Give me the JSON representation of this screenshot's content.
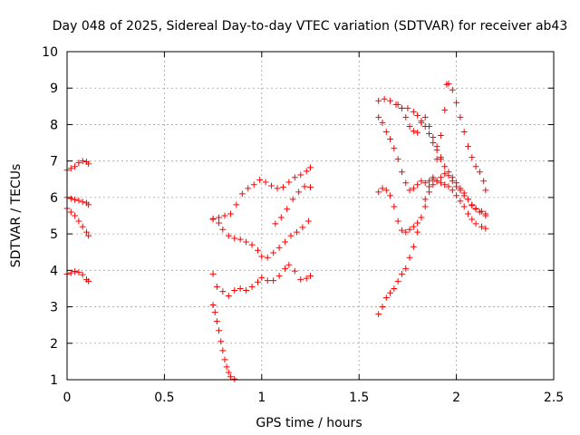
{
  "chart_data": {
    "type": "scatter",
    "title": "Day 048 of 2025, Sidereal Day-to-day VTEC variation (SDTVAR) for receiver ab43",
    "xlabel": "GPS time / hours",
    "ylabel": "SDTVAR / TECUs",
    "xlim": [
      0,
      2.5
    ],
    "ylim": [
      1,
      10
    ],
    "x_ticks": [
      "0",
      "0.5",
      "1",
      "1.5",
      "2",
      "2.5"
    ],
    "y_ticks": [
      "1",
      "2",
      "3",
      "4",
      "5",
      "6",
      "7",
      "8",
      "9",
      "10"
    ],
    "grid": true,
    "marker": "+",
    "color": "#ff0000",
    "series": [
      {
        "points": [
          [
            0.0,
            6.75
          ],
          [
            0.02,
            6.8
          ],
          [
            0.04,
            6.85
          ],
          [
            0.06,
            6.95
          ],
          [
            0.08,
            7.0
          ],
          [
            0.1,
            6.98
          ],
          [
            0.11,
            6.92
          ],
          [
            0.0,
            6.0
          ],
          [
            0.02,
            5.97
          ],
          [
            0.04,
            5.94
          ],
          [
            0.06,
            5.92
          ],
          [
            0.08,
            5.88
          ],
          [
            0.1,
            5.85
          ],
          [
            0.11,
            5.8
          ],
          [
            0.0,
            5.7
          ],
          [
            0.02,
            5.6
          ],
          [
            0.04,
            5.5
          ],
          [
            0.06,
            5.35
          ],
          [
            0.08,
            5.2
          ],
          [
            0.1,
            5.05
          ],
          [
            0.11,
            4.95
          ],
          [
            0.0,
            3.9
          ],
          [
            0.02,
            3.93
          ],
          [
            0.04,
            3.97
          ],
          [
            0.06,
            3.95
          ],
          [
            0.08,
            3.88
          ],
          [
            0.1,
            3.75
          ],
          [
            0.11,
            3.7
          ],
          [
            0.75,
            5.42
          ],
          [
            0.78,
            5.45
          ],
          [
            0.81,
            5.5
          ],
          [
            0.84,
            5.55
          ],
          [
            0.87,
            5.8
          ],
          [
            0.9,
            6.1
          ],
          [
            0.93,
            6.25
          ],
          [
            0.96,
            6.35
          ],
          [
            0.99,
            6.48
          ],
          [
            1.02,
            6.42
          ],
          [
            1.05,
            6.32
          ],
          [
            1.08,
            6.25
          ],
          [
            1.11,
            6.28
          ],
          [
            1.14,
            6.42
          ],
          [
            1.17,
            6.55
          ],
          [
            1.2,
            6.62
          ],
          [
            1.23,
            6.72
          ],
          [
            1.25,
            6.82
          ],
          [
            0.75,
            5.4
          ],
          [
            0.78,
            5.3
          ],
          [
            0.8,
            5.12
          ],
          [
            0.83,
            4.95
          ],
          [
            0.86,
            4.88
          ],
          [
            0.89,
            4.85
          ],
          [
            0.92,
            4.78
          ],
          [
            0.95,
            4.7
          ],
          [
            0.98,
            4.55
          ],
          [
            1.0,
            4.38
          ],
          [
            1.03,
            4.35
          ],
          [
            1.06,
            4.48
          ],
          [
            1.09,
            4.62
          ],
          [
            1.12,
            4.78
          ],
          [
            1.15,
            4.95
          ],
          [
            1.18,
            5.05
          ],
          [
            1.21,
            5.18
          ],
          [
            1.24,
            5.35
          ],
          [
            1.07,
            5.28
          ],
          [
            1.1,
            5.45
          ],
          [
            1.13,
            5.68
          ],
          [
            1.16,
            5.95
          ],
          [
            1.19,
            6.15
          ],
          [
            1.22,
            6.3
          ],
          [
            1.25,
            6.28
          ],
          [
            0.75,
            3.9
          ],
          [
            0.77,
            3.55
          ],
          [
            0.8,
            3.42
          ],
          [
            0.83,
            3.3
          ],
          [
            0.86,
            3.45
          ],
          [
            0.89,
            3.5
          ],
          [
            0.92,
            3.45
          ],
          [
            0.95,
            3.55
          ],
          [
            0.98,
            3.68
          ],
          [
            1.0,
            3.8
          ],
          [
            1.03,
            3.72
          ],
          [
            1.06,
            3.72
          ],
          [
            1.09,
            3.85
          ],
          [
            1.12,
            4.05
          ],
          [
            1.14,
            4.15
          ],
          [
            1.17,
            3.98
          ],
          [
            1.2,
            3.75
          ],
          [
            1.23,
            3.78
          ],
          [
            1.25,
            3.85
          ],
          [
            0.75,
            3.05
          ],
          [
            0.76,
            2.85
          ],
          [
            0.77,
            2.6
          ],
          [
            0.78,
            2.35
          ],
          [
            0.79,
            2.05
          ],
          [
            0.8,
            1.8
          ],
          [
            0.81,
            1.55
          ],
          [
            0.82,
            1.35
          ],
          [
            0.83,
            1.2
          ],
          [
            0.84,
            1.08
          ],
          [
            0.86,
            1.02
          ],
          [
            1.6,
            8.65
          ],
          [
            1.63,
            8.7
          ],
          [
            1.66,
            8.65
          ],
          [
            1.69,
            8.55
          ],
          [
            1.72,
            8.45
          ],
          [
            1.75,
            8.45
          ],
          [
            1.78,
            8.35
          ],
          [
            1.8,
            8.25
          ],
          [
            1.82,
            8.1
          ],
          [
            1.84,
            7.95
          ],
          [
            1.86,
            7.75
          ],
          [
            1.88,
            7.5
          ],
          [
            1.9,
            7.3
          ],
          [
            1.92,
            7.1
          ],
          [
            1.94,
            6.85
          ],
          [
            1.96,
            6.6
          ],
          [
            1.98,
            6.45
          ],
          [
            2.0,
            6.3
          ],
          [
            2.02,
            6.2
          ],
          [
            2.04,
            6.05
          ],
          [
            2.06,
            5.95
          ],
          [
            2.08,
            5.8
          ],
          [
            2.1,
            5.7
          ],
          [
            2.13,
            5.62
          ],
          [
            2.15,
            5.55
          ],
          [
            1.6,
            8.2
          ],
          [
            1.62,
            8.05
          ],
          [
            1.64,
            7.8
          ],
          [
            1.66,
            7.6
          ],
          [
            1.68,
            7.35
          ],
          [
            1.7,
            7.05
          ],
          [
            1.72,
            6.7
          ],
          [
            1.74,
            6.4
          ],
          [
            1.76,
            6.2
          ],
          [
            1.78,
            6.25
          ],
          [
            1.8,
            6.35
          ],
          [
            1.82,
            6.45
          ],
          [
            1.84,
            6.4
          ],
          [
            1.86,
            6.3
          ],
          [
            1.88,
            6.35
          ],
          [
            1.9,
            6.45
          ],
          [
            1.92,
            6.4
          ],
          [
            1.94,
            6.35
          ],
          [
            1.96,
            6.3
          ],
          [
            1.98,
            6.2
          ],
          [
            2.0,
            6.05
          ],
          [
            2.02,
            5.9
          ],
          [
            2.04,
            5.75
          ],
          [
            2.06,
            5.55
          ],
          [
            2.08,
            5.4
          ],
          [
            2.1,
            5.28
          ],
          [
            2.13,
            5.2
          ],
          [
            2.15,
            5.15
          ],
          [
            1.6,
            6.15
          ],
          [
            1.62,
            6.25
          ],
          [
            1.64,
            6.2
          ],
          [
            1.66,
            6.05
          ],
          [
            1.68,
            5.75
          ],
          [
            1.7,
            5.35
          ],
          [
            1.72,
            5.1
          ],
          [
            1.74,
            5.05
          ],
          [
            1.76,
            5.12
          ],
          [
            1.78,
            5.2
          ],
          [
            1.8,
            5.3
          ],
          [
            1.82,
            5.45
          ],
          [
            1.84,
            5.75
          ],
          [
            1.86,
            6.15
          ],
          [
            1.88,
            6.5
          ],
          [
            1.9,
            7.05
          ],
          [
            1.92,
            7.7
          ],
          [
            1.94,
            8.4
          ],
          [
            1.95,
            9.1
          ],
          [
            1.96,
            9.12
          ],
          [
            1.98,
            8.95
          ],
          [
            2.0,
            8.6
          ],
          [
            2.02,
            8.2
          ],
          [
            2.04,
            7.8
          ],
          [
            2.06,
            7.4
          ],
          [
            2.08,
            7.1
          ],
          [
            2.1,
            6.85
          ],
          [
            2.12,
            6.7
          ],
          [
            2.14,
            6.45
          ],
          [
            2.15,
            6.2
          ],
          [
            1.6,
            2.8
          ],
          [
            1.62,
            3.0
          ],
          [
            1.64,
            3.25
          ],
          [
            1.66,
            3.38
          ],
          [
            1.68,
            3.5
          ],
          [
            1.7,
            3.7
          ],
          [
            1.72,
            3.9
          ],
          [
            1.74,
            4.05
          ],
          [
            1.76,
            4.35
          ],
          [
            1.78,
            4.65
          ],
          [
            1.8,
            5.05
          ],
          [
            1.82,
            5.45
          ],
          [
            1.84,
            5.95
          ],
          [
            1.86,
            6.45
          ],
          [
            1.88,
            6.55
          ],
          [
            1.9,
            6.45
          ],
          [
            1.92,
            6.55
          ],
          [
            1.94,
            6.65
          ],
          [
            1.96,
            6.7
          ],
          [
            1.98,
            6.55
          ],
          [
            2.0,
            6.4
          ],
          [
            2.02,
            6.25
          ],
          [
            2.04,
            6.12
          ],
          [
            2.06,
            5.95
          ],
          [
            2.08,
            5.78
          ],
          [
            2.1,
            5.68
          ],
          [
            2.12,
            5.6
          ],
          [
            2.15,
            5.5
          ],
          [
            1.7,
            8.55
          ],
          [
            1.72,
            8.45
          ],
          [
            1.74,
            8.2
          ],
          [
            1.76,
            7.95
          ],
          [
            1.78,
            7.82
          ],
          [
            1.8,
            7.78
          ],
          [
            1.82,
            8.05
          ],
          [
            1.84,
            8.2
          ],
          [
            1.86,
            7.95
          ],
          [
            1.88,
            7.65
          ],
          [
            1.9,
            7.4
          ],
          [
            1.92,
            7.05
          ]
        ]
      }
    ]
  }
}
